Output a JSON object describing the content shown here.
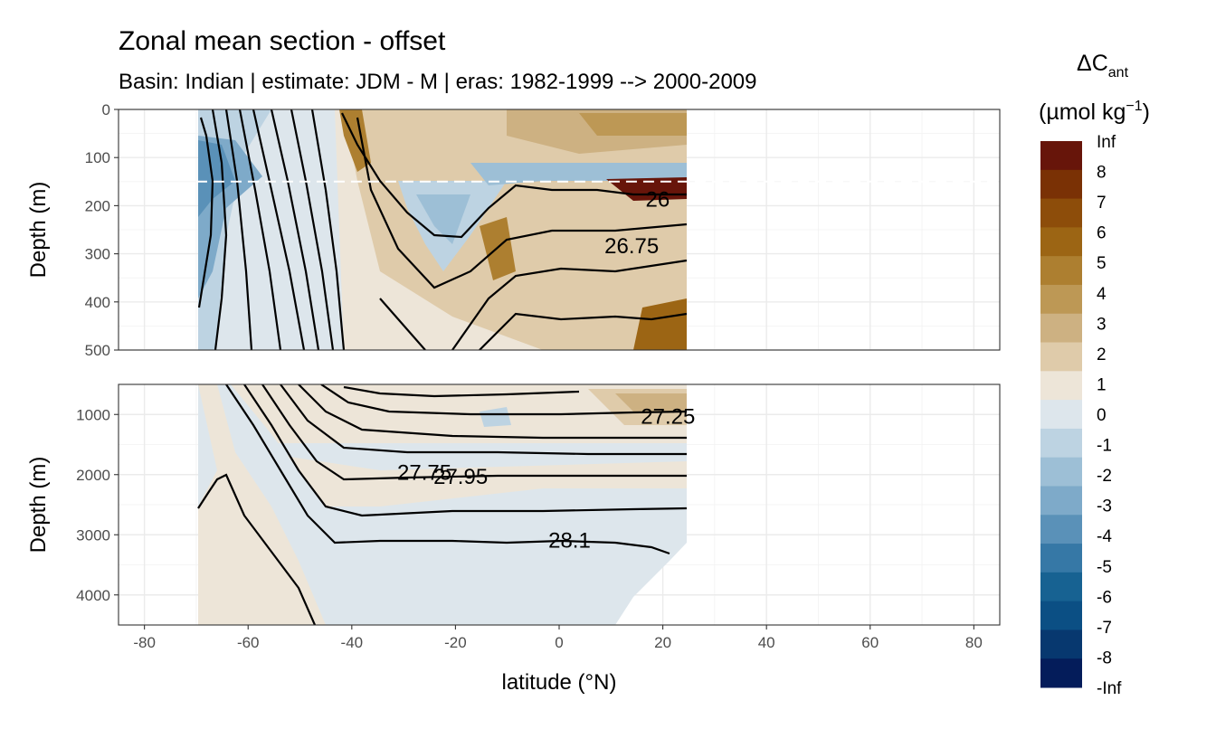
{
  "chart_data": {
    "type": "heatmap",
    "title": "Zonal mean section - offset",
    "subtitle": "Basin: Indian | estimate: JDM - M | eras: 1982-1999 --> 2000-2009",
    "xlabel": "latitude (°N)",
    "x_ticks": [
      "-80",
      "-60",
      "-40",
      "-20",
      "0",
      "20",
      "40",
      "60",
      "80"
    ],
    "xlim": [
      -85,
      85
    ],
    "data_extent_lat": [
      -70,
      24
    ],
    "legend": {
      "title_main": "ΔC",
      "title_sub": "ant",
      "unit_pre": "(µmol kg",
      "unit_sup": "−1",
      "unit_post": ")",
      "labels": [
        "Inf",
        "8",
        "7",
        "6",
        "5",
        "4",
        "3",
        "2",
        "1",
        "0",
        "-1",
        "-2",
        "-3",
        "-4",
        "-5",
        "-6",
        "-7",
        "-8",
        "-Inf"
      ],
      "colors": [
        "#67150a",
        "#7a3105",
        "#8d4d0a",
        "#9c6514",
        "#ad7f30",
        "#bd9855",
        "#cdb182",
        "#dfcbaa",
        "#ede5d8",
        "#dde6ec",
        "#bdd3e2",
        "#9dbfd6",
        "#7eaac9",
        "#5a91b8",
        "#3678a6",
        "#176292",
        "#0b4f84",
        "#07386f",
        "#041c5a"
      ]
    },
    "panels": [
      {
        "name": "upper",
        "ylabel": "Depth (m)",
        "y_ticks": [
          "0",
          "100",
          "200",
          "300",
          "400",
          "500"
        ],
        "ylim": [
          0,
          500
        ],
        "reference_depth": 150,
        "contour_labels": [
          {
            "text": "26",
            "lat": 19,
            "depth": 185
          },
          {
            "text": "26.75",
            "lat": 14,
            "depth": 282
          }
        ]
      },
      {
        "name": "lower",
        "ylabel": "Depth (m)",
        "y_ticks": [
          "1000",
          "2000",
          "3000",
          "4000"
        ],
        "ylim": [
          500,
          4500
        ],
        "contour_labels": [
          {
            "text": "27.25",
            "lat": 21,
            "depth": 1020
          },
          {
            "text": "27.75",
            "lat": -26,
            "depth": 1950
          },
          {
            "text": "27.95",
            "lat": -19,
            "depth": 2020
          },
          {
            "text": "28.1",
            "lat": 2,
            "depth": 3080
          }
        ]
      }
    ]
  }
}
